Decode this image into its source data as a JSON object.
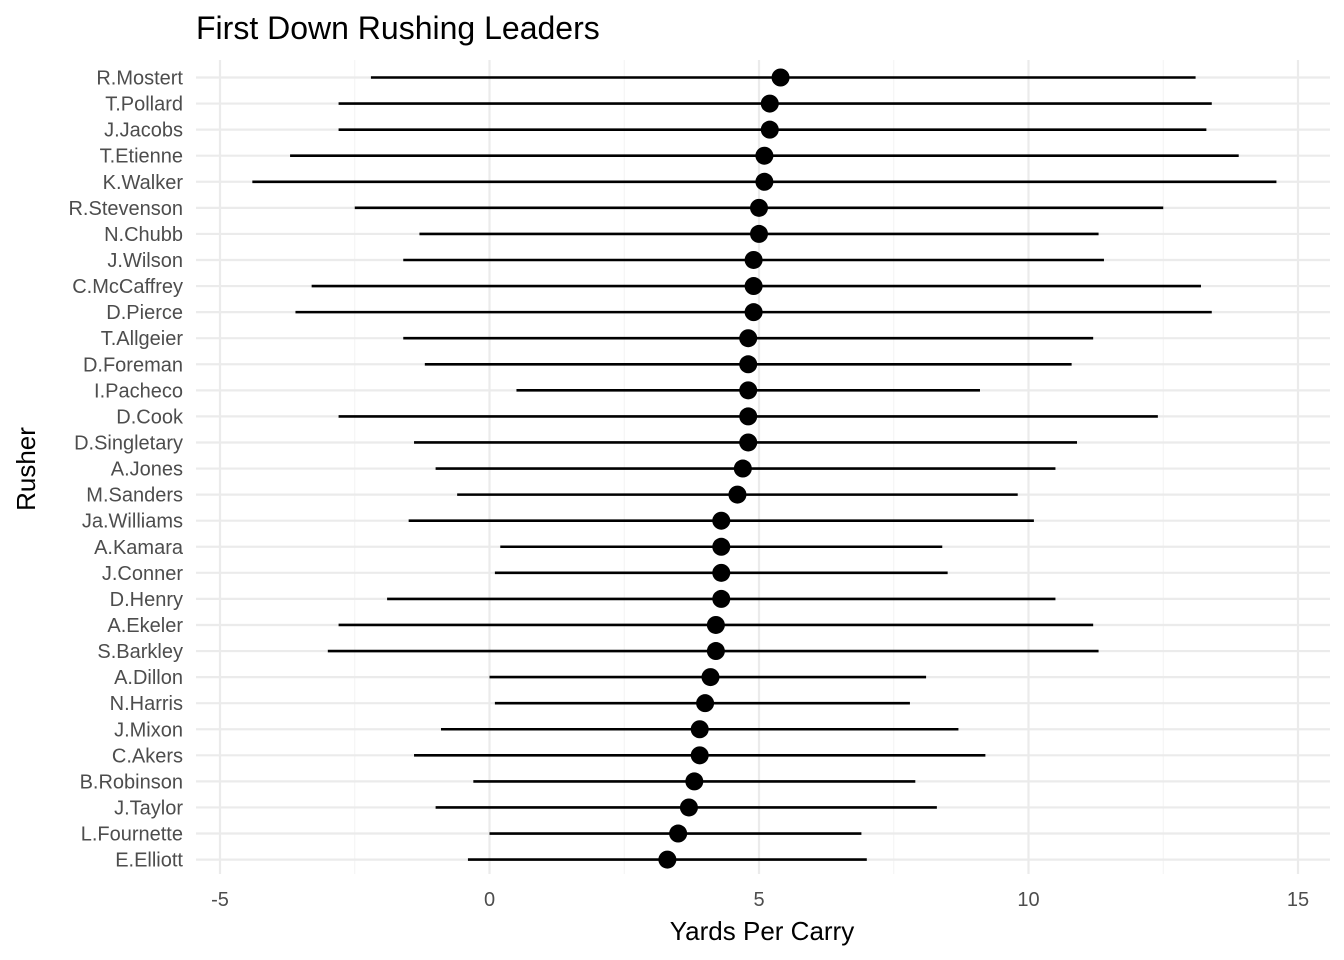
{
  "chart_data": {
    "type": "scatter",
    "title": "First Down Rushing Leaders",
    "xlabel": "Yards Per Carry",
    "ylabel": "Rusher",
    "xlim": [
      -5,
      15
    ],
    "xticks": [
      -5,
      0,
      5,
      10,
      15
    ],
    "xtick_labels": [
      "-5",
      "0",
      "5",
      "10",
      "15"
    ],
    "grid": true,
    "colors": {
      "marks": "#000000",
      "grid": "#ebebeb",
      "tick_text": "#4d4d4d"
    },
    "rushers": [
      {
        "name": "R.Mostert",
        "mean": 5.4,
        "low": -2.2,
        "high": 13.1
      },
      {
        "name": "T.Pollard",
        "mean": 5.2,
        "low": -2.8,
        "high": 13.4
      },
      {
        "name": "J.Jacobs",
        "mean": 5.2,
        "low": -2.8,
        "high": 13.3
      },
      {
        "name": "T.Etienne",
        "mean": 5.1,
        "low": -3.7,
        "high": 13.9
      },
      {
        "name": "K.Walker",
        "mean": 5.1,
        "low": -4.4,
        "high": 14.6
      },
      {
        "name": "R.Stevenson",
        "mean": 5.0,
        "low": -2.5,
        "high": 12.5
      },
      {
        "name": "N.Chubb",
        "mean": 5.0,
        "low": -1.3,
        "high": 11.3
      },
      {
        "name": "J.Wilson",
        "mean": 4.9,
        "low": -1.6,
        "high": 11.4
      },
      {
        "name": "C.McCaffrey",
        "mean": 4.9,
        "low": -3.3,
        "high": 13.2
      },
      {
        "name": "D.Pierce",
        "mean": 4.9,
        "low": -3.6,
        "high": 13.4
      },
      {
        "name": "T.Allgeier",
        "mean": 4.8,
        "low": -1.6,
        "high": 11.2
      },
      {
        "name": "D.Foreman",
        "mean": 4.8,
        "low": -1.2,
        "high": 10.8
      },
      {
        "name": "I.Pacheco",
        "mean": 4.8,
        "low": 0.5,
        "high": 9.1
      },
      {
        "name": "D.Cook",
        "mean": 4.8,
        "low": -2.8,
        "high": 12.4
      },
      {
        "name": "D.Singletary",
        "mean": 4.8,
        "low": -1.4,
        "high": 10.9
      },
      {
        "name": "A.Jones",
        "mean": 4.7,
        "low": -1.0,
        "high": 10.5
      },
      {
        "name": "M.Sanders",
        "mean": 4.6,
        "low": -0.6,
        "high": 9.8
      },
      {
        "name": "Ja.Williams",
        "mean": 4.3,
        "low": -1.5,
        "high": 10.1
      },
      {
        "name": "A.Kamara",
        "mean": 4.3,
        "low": 0.2,
        "high": 8.4
      },
      {
        "name": "J.Conner",
        "mean": 4.3,
        "low": 0.1,
        "high": 8.5
      },
      {
        "name": "D.Henry",
        "mean": 4.3,
        "low": -1.9,
        "high": 10.5
      },
      {
        "name": "A.Ekeler",
        "mean": 4.2,
        "low": -2.8,
        "high": 11.2
      },
      {
        "name": "S.Barkley",
        "mean": 4.2,
        "low": -3.0,
        "high": 11.3
      },
      {
        "name": "A.Dillon",
        "mean": 4.1,
        "low": 0.0,
        "high": 8.1
      },
      {
        "name": "N.Harris",
        "mean": 4.0,
        "low": 0.1,
        "high": 7.8
      },
      {
        "name": "J.Mixon",
        "mean": 3.9,
        "low": -0.9,
        "high": 8.7
      },
      {
        "name": "C.Akers",
        "mean": 3.9,
        "low": -1.4,
        "high": 9.2
      },
      {
        "name": "B.Robinson",
        "mean": 3.8,
        "low": -0.3,
        "high": 7.9
      },
      {
        "name": "J.Taylor",
        "mean": 3.7,
        "low": -1.0,
        "high": 8.3
      },
      {
        "name": "L.Fournette",
        "mean": 3.5,
        "low": 0.0,
        "high": 6.9
      },
      {
        "name": "E.Elliott",
        "mean": 3.3,
        "low": -0.4,
        "high": 7.0
      }
    ]
  }
}
